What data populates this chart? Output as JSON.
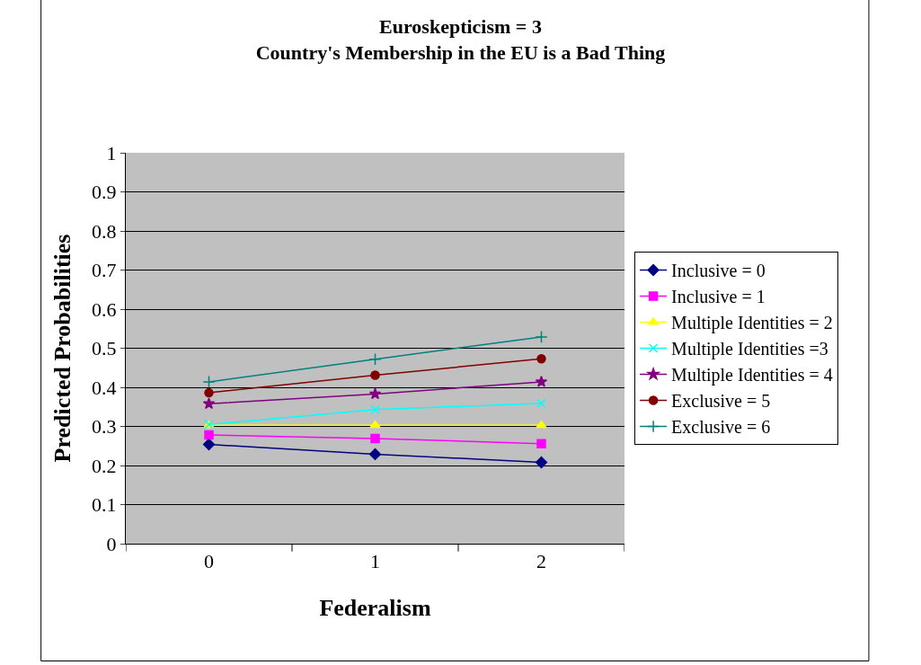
{
  "chart_data": {
    "type": "line",
    "title": "Euroskepticism = 3",
    "subtitle": "Country's Membership in the EU is a Bad Thing",
    "xlabel": "Federalism",
    "ylabel": "Predicted Probabilities",
    "categories": [
      "0",
      "1",
      "2"
    ],
    "series": [
      {
        "name": "Inclusive = 0",
        "color": "#000080",
        "marker": "diamond",
        "values": [
          0.254,
          0.229,
          0.208
        ]
      },
      {
        "name": "Inclusive = 1",
        "color": "#ff00ff",
        "marker": "square",
        "values": [
          0.278,
          0.269,
          0.256
        ]
      },
      {
        "name": "Multiple Identities = 2",
        "color": "#ffff00",
        "marker": "triangle",
        "values": [
          0.303,
          0.303,
          0.303
        ]
      },
      {
        "name": "Multiple Identities =3",
        "color": "#00ffff",
        "marker": "x",
        "values": [
          0.305,
          0.343,
          0.359
        ]
      },
      {
        "name": "Multiple Identities = 4",
        "color": "#800080",
        "marker": "star",
        "values": [
          0.358,
          0.383,
          0.414
        ]
      },
      {
        "name": "Exclusive = 5",
        "color": "#800000",
        "marker": "circle",
        "values": [
          0.386,
          0.431,
          0.473
        ]
      },
      {
        "name": "Exclusive = 6",
        "color": "#008080",
        "marker": "cross",
        "values": [
          0.414,
          0.472,
          0.529
        ]
      }
    ],
    "ylim": [
      0,
      1
    ],
    "yticks": [
      0,
      0.1,
      0.2,
      0.3,
      0.4,
      0.5,
      0.6,
      0.7,
      0.8,
      0.9,
      1
    ],
    "grid": "y",
    "legend": "right"
  }
}
